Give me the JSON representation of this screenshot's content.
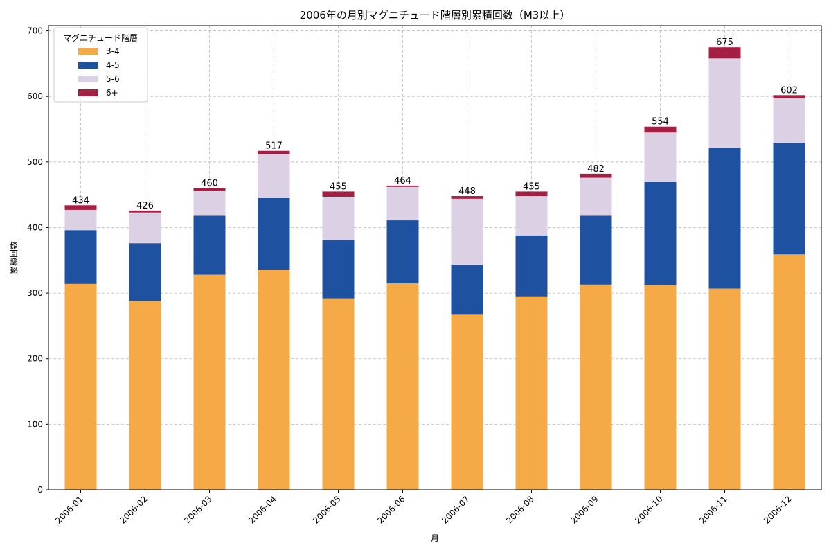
{
  "chart_data": {
    "type": "bar",
    "stacked": true,
    "title": "2006年の月別マグニチュード階層別累積回数（M3以上）",
    "xlabel": "月",
    "ylabel": "累積回数",
    "ylim": [
      0,
      708
    ],
    "yticks": [
      0,
      100,
      200,
      300,
      400,
      500,
      600,
      700
    ],
    "grid": true,
    "legend": {
      "title": "マグニチュード階層",
      "placement": "top-left"
    },
    "categories": [
      "2006-01",
      "2006-02",
      "2006-03",
      "2006-04",
      "2006-05",
      "2006-06",
      "2006-07",
      "2006-08",
      "2006-09",
      "2006-10",
      "2006-11",
      "2006-12"
    ],
    "series": [
      {
        "name": "3-4",
        "color": "#f5a947",
        "values": [
          314,
          288,
          328,
          335,
          292,
          315,
          268,
          295,
          313,
          312,
          307,
          359
        ]
      },
      {
        "name": "4-5",
        "color": "#1f51a1",
        "values": [
          82,
          88,
          90,
          110,
          89,
          96,
          75,
          93,
          105,
          158,
          214,
          170
        ]
      },
      {
        "name": "5-6",
        "color": "#dcd0e5",
        "values": [
          31,
          47,
          38,
          67,
          66,
          51,
          101,
          60,
          58,
          75,
          137,
          68
        ]
      },
      {
        "name": "6+",
        "color": "#a31f44",
        "values": [
          7,
          3,
          4,
          5,
          8,
          2,
          4,
          7,
          6,
          9,
          17,
          5
        ]
      }
    ],
    "totals": [
      434,
      426,
      460,
      517,
      455,
      464,
      448,
      455,
      482,
      554,
      675,
      602
    ]
  }
}
